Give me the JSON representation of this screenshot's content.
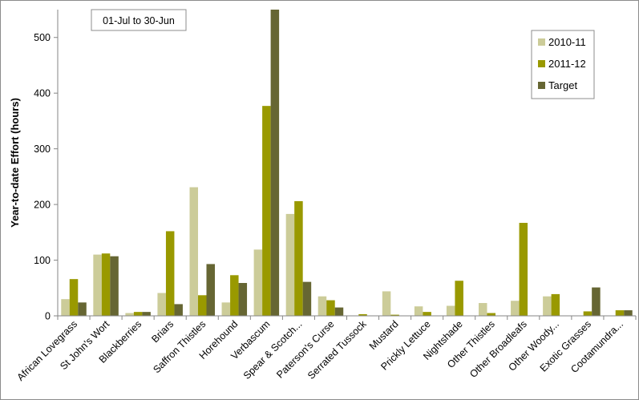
{
  "chart_data": {
    "type": "bar",
    "title": "",
    "xlabel": "",
    "ylabel": "Year-to-date Effort  (hours)",
    "annotation": "01-Jul to 30-Jun",
    "ylim": [
      0,
      550
    ],
    "yticks": [
      0,
      100,
      200,
      300,
      400,
      500
    ],
    "grid": false,
    "legend_position": "top-right",
    "categories": [
      "African Lovegrass",
      "St John's Wort",
      "Blackberries",
      "Briars",
      "Saffron  Thistles",
      "Horehound",
      "Verbascum",
      "Spear & Scotch...",
      "Paterson's Curse",
      "Serrated Tussock",
      "Mustard",
      "Prickly  Lettuce",
      "Nightshade",
      "Other Thistles",
      "Other Broadleafs",
      "Other Woody...",
      "Exotic Grasses",
      "Cootamundra..."
    ],
    "series": [
      {
        "name": "2010-11",
        "color": "#cccc99",
        "values": [
          30,
          110,
          5,
          41,
          231,
          24,
          119,
          183,
          35,
          0,
          44,
          17,
          18,
          23,
          27,
          35,
          0,
          0
        ]
      },
      {
        "name": "2011-12",
        "color": "#999900",
        "values": [
          66,
          112,
          7,
          152,
          37,
          73,
          377,
          206,
          28,
          3,
          2,
          7,
          63,
          5,
          167,
          39,
          8,
          10
        ]
      },
      {
        "name": "Target",
        "color": "#666633",
        "values": [
          24,
          107,
          7,
          21,
          93,
          59,
          550,
          61,
          15,
          0,
          0,
          0,
          0,
          0,
          0,
          0,
          51,
          10
        ]
      }
    ]
  }
}
